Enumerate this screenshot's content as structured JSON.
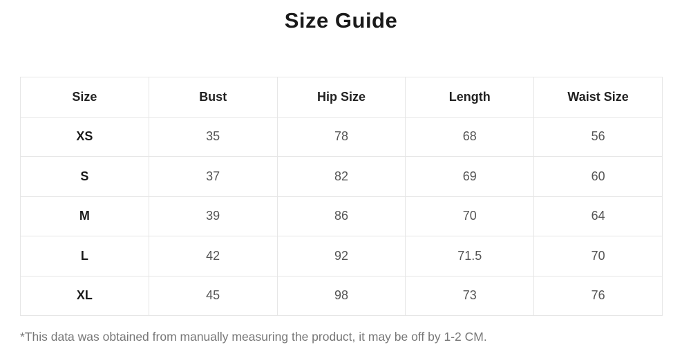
{
  "title": "Size Guide",
  "table": {
    "headers": [
      "Size",
      "Bust",
      "Hip Size",
      "Length",
      "Waist Size"
    ],
    "rows": [
      [
        "XS",
        "35",
        "78",
        "68",
        "56"
      ],
      [
        "S",
        "37",
        "82",
        "69",
        "60"
      ],
      [
        "M",
        "39",
        "86",
        "70",
        "64"
      ],
      [
        "L",
        "42",
        "92",
        "71.5",
        "70"
      ],
      [
        "XL",
        "45",
        "98",
        "73",
        "76"
      ]
    ]
  },
  "note": "*This data was obtained from manually measuring the product, it may be off by 1-2 CM."
}
